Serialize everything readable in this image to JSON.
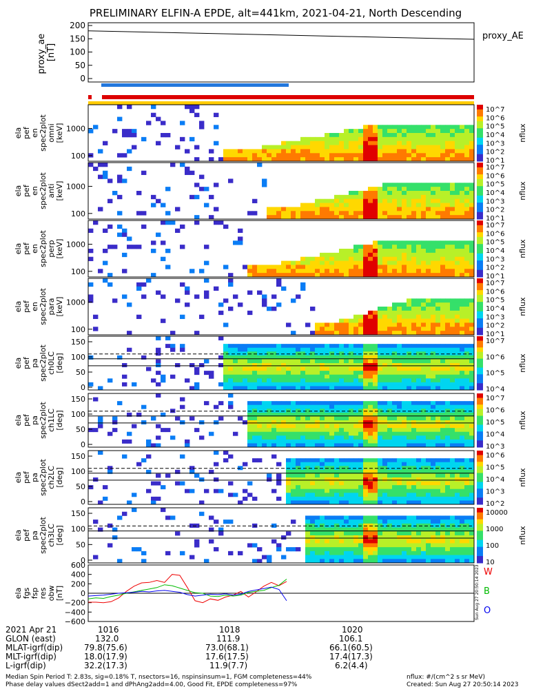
{
  "title": "PRELIMINARY ELFIN-A EPDE, alt=441km, 2021-04-21, North Descending",
  "proxy_panel": {
    "ylabel": "proxy_ae\n[nT]",
    "yticks": [
      "200",
      "150",
      "100",
      "50",
      "0"
    ],
    "legend": "proxy_AE"
  },
  "colors": {
    "bar_red": "#dd0000",
    "bar_blue": "#2277dd",
    "bar_yellow": "#ffcc00",
    "line_red": "#ee0000",
    "line_green": "#00bb00",
    "line_blue": "#0000ee"
  },
  "spec_panels": [
    {
      "ylabel": [
        "ela",
        "pef",
        "en",
        "spec2plot",
        "omni",
        "[keV]"
      ],
      "yticks": [
        "1000",
        "100"
      ],
      "cb_ticks": [
        "10^7",
        "10^6",
        "10^5",
        "10^4",
        "10^3",
        "10^2",
        "10^1"
      ],
      "cb_label": "nflux"
    },
    {
      "ylabel": [
        "ela",
        "pef",
        "en",
        "spec2plot",
        "anti",
        "[keV]"
      ],
      "yticks": [
        "1000",
        "100"
      ],
      "cb_ticks": [
        "10^7",
        "10^6",
        "10^5",
        "10^4",
        "10^3",
        "10^2",
        "10^1"
      ],
      "cb_label": "nflux"
    },
    {
      "ylabel": [
        "ela",
        "pef",
        "en",
        "spec2plot",
        "perp",
        "[keV]"
      ],
      "yticks": [
        "1000",
        "100"
      ],
      "cb_ticks": [
        "10^7",
        "10^6",
        "10^5",
        "10^4",
        "10^3",
        "10^2",
        "10^1"
      ],
      "cb_label": "nflux"
    },
    {
      "ylabel": [
        "ela",
        "pef",
        "en",
        "spec2plot",
        "para",
        "[keV]"
      ],
      "yticks": [
        "1000",
        "100"
      ],
      "cb_ticks": [
        "10^7",
        "10^6",
        "10^5",
        "10^4",
        "10^3",
        "10^2",
        "10^1"
      ],
      "cb_label": "nflux"
    },
    {
      "ylabel": [
        "ela",
        "pef",
        "pa",
        "spec2plot",
        "ch0LC",
        "[deg]"
      ],
      "yticks": [
        "150",
        "100",
        "50",
        "0"
      ],
      "cb_ticks": [
        "10^7",
        "10^6",
        "10^5",
        "10^4"
      ],
      "cb_label": "nflux"
    },
    {
      "ylabel": [
        "ela",
        "pef",
        "pa",
        "spec2plot",
        "ch1LC",
        "[deg]"
      ],
      "yticks": [
        "150",
        "100",
        "50",
        "0"
      ],
      "cb_ticks": [
        "10^7",
        "10^6",
        "10^5",
        "10^4",
        "10^3"
      ],
      "cb_label": "nflux"
    },
    {
      "ylabel": [
        "ela",
        "pef",
        "pa",
        "spec2plot",
        "ch2LC",
        "[deg]"
      ],
      "yticks": [
        "150",
        "100",
        "50",
        "0"
      ],
      "cb_ticks": [
        "10^6",
        "10^5",
        "10^4",
        "10^3",
        "10^2"
      ],
      "cb_label": "nflux"
    },
    {
      "ylabel": [
        "ela",
        "pef",
        "pa",
        "spec2plot",
        "ch3LC",
        "[deg]"
      ],
      "yticks": [
        "150",
        "100",
        "50",
        "0"
      ],
      "cb_ticks": [
        "10000",
        "1000",
        "100",
        "10"
      ],
      "cb_label": "nflux"
    }
  ],
  "mag_panel": {
    "ylabel": [
      "ela",
      "fgs",
      "fsp",
      "res",
      "obw",
      "[nT]"
    ],
    "yticks": [
      "600",
      "400",
      "200",
      "0",
      "−200",
      "−400",
      "−600"
    ],
    "legend": [
      "W",
      "B",
      "O"
    ]
  },
  "side_stamp": "Sun Aug 27 20:50:14 2023",
  "footer": {
    "rows": [
      {
        "label": "2021 Apr 21",
        "values": [
          "1016",
          "1018",
          "1020"
        ]
      },
      {
        "label": "GLON (east)",
        "values": [
          "132.0",
          "111.9",
          "106.1"
        ]
      },
      {
        "label": "MLAT-igrf(dip)",
        "values": [
          "79.8(75.6)",
          "73.0(68.1)",
          "66.1(60.5)"
        ]
      },
      {
        "label": "MLT-igrf(dip)",
        "values": [
          "18.0(17.9)",
          "17.6(17.5)",
          "17.4(17.3)"
        ]
      },
      {
        "label": "L-igrf(dip)",
        "values": [
          "32.2(17.3)",
          "11.9(7.7)",
          "6.2(4.4)"
        ]
      }
    ],
    "note1": "Median Spin Period T: 2.83s, sig=0.18% T, nsectors=16, nspinsinsum=1, FGM completeness=44%",
    "note2": "Phase delay values dSect2add=1 and dPhAng2add=4.00, Good Fit, EPDE completeness=97%",
    "units": "nflux: #/(cm^2 s sr MeV)",
    "created": "Created: Sun Aug 27 20:50:14 2023"
  },
  "chart_data": {
    "type": "line",
    "title": "PRELIMINARY ELFIN-A EPDE, alt=441km, 2021-04-21, North Descending",
    "xlabel": "",
    "x_ticks": [
      "1016",
      "1018",
      "1020"
    ],
    "proxy_ae": {
      "name": "proxy_AE",
      "ylim": [
        0,
        200
      ],
      "x": [
        "1015.0",
        "1023.0"
      ],
      "values": [
        180,
        148
      ]
    },
    "spectrogram_panels": 8,
    "mag_series": [
      {
        "name": "W",
        "values": [
          -190,
          -190,
          -200,
          -180,
          -100,
          40,
          150,
          220,
          230,
          270,
          230,
          400,
          380,
          120,
          -160,
          -200,
          -120,
          -150,
          -80,
          -40,
          40,
          -80,
          30,
          150,
          230,
          160,
          250
        ]
      },
      {
        "name": "B",
        "values": [
          -120,
          -100,
          -110,
          -70,
          -40,
          0,
          30,
          60,
          90,
          120,
          180,
          160,
          110,
          60,
          10,
          0,
          -60,
          -70,
          -40,
          -60,
          -40,
          20,
          40,
          60,
          120,
          170,
          300
        ]
      },
      {
        "name": "O",
        "values": [
          -60,
          -50,
          -40,
          -20,
          0,
          10,
          20,
          40,
          30,
          50,
          60,
          40,
          20,
          -30,
          -60,
          -40,
          -20,
          -30,
          -10,
          -40,
          -20,
          40,
          70,
          100,
          130,
          80,
          -160
        ]
      }
    ],
    "mag_ylim": [
      -600,
      600
    ],
    "grid": false
  }
}
